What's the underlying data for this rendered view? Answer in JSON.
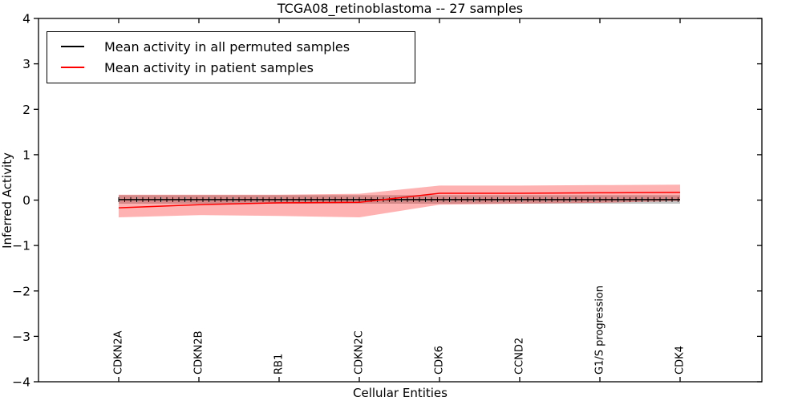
{
  "figure": {
    "title": "TCGA08_retinoblastoma -- 27 samples"
  },
  "chart_data": {
    "type": "line",
    "title": "TCGA08_retinoblastoma -- 27 samples",
    "xlabel": "Cellular Entities",
    "ylabel": "Inferred Activity",
    "ylim": [
      -4,
      4
    ],
    "yticks": [
      4,
      3,
      2,
      1,
      0,
      -1,
      -2,
      -3,
      -4
    ],
    "grid": false,
    "legend_position": "upper left",
    "categories": [
      "CDKN2A",
      "CDKN2B",
      "RB1",
      "CDKN2C",
      "CDK6",
      "CCND2",
      "G1/S progression",
      "CDK4"
    ],
    "series": [
      {
        "name": "Mean activity in all permuted samples",
        "color": "#000000",
        "marker": "tick",
        "values": [
          0.01,
          0.01,
          0.01,
          0.01,
          0.01,
          0.01,
          0.01,
          0.01
        ],
        "band_upper": [
          0.11,
          0.11,
          0.11,
          0.11,
          0.11,
          0.11,
          0.11,
          0.11
        ],
        "band_lower": [
          -0.08,
          -0.08,
          -0.08,
          -0.08,
          -0.08,
          -0.08,
          -0.08,
          -0.08
        ],
        "band_color": "rgba(90,90,90,0.35)"
      },
      {
        "name": "Mean activity in patient samples",
        "color": "#ff0000",
        "marker": "none",
        "values": [
          -0.17,
          -0.1,
          -0.06,
          -0.05,
          0.15,
          0.15,
          0.16,
          0.17
        ],
        "band_upper": [
          0.12,
          0.12,
          0.12,
          0.14,
          0.32,
          0.32,
          0.33,
          0.34
        ],
        "band_lower": [
          -0.38,
          -0.33,
          -0.35,
          -0.38,
          -0.1,
          -0.08,
          -0.06,
          -0.02
        ],
        "band_color": "rgba(255,0,0,0.30)"
      }
    ]
  }
}
